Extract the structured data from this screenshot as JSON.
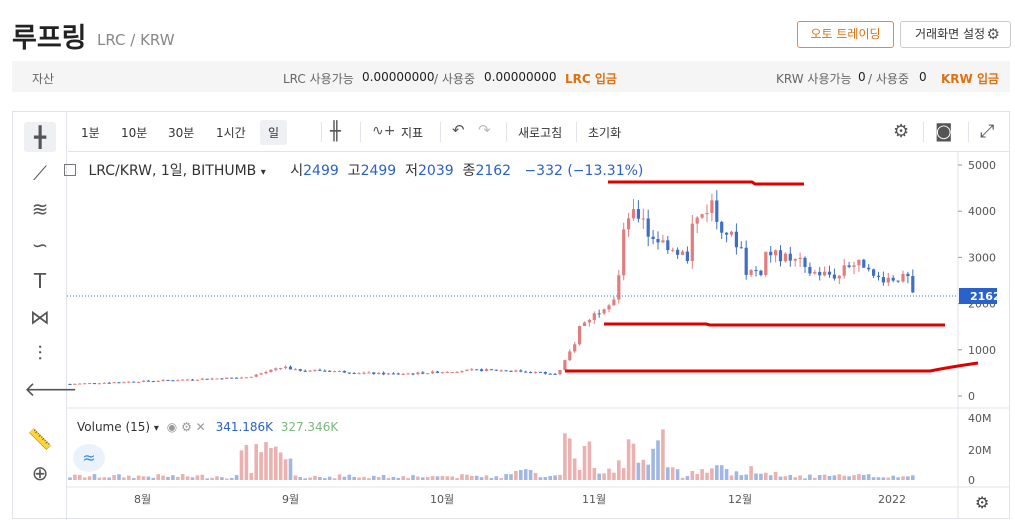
{
  "header": {
    "title": "루프링",
    "subtitle": "LRC / KRW",
    "auto_trading_label": "오토 트레이딩",
    "screen_settings_label": "거래화면 설정"
  },
  "assets": {
    "label": "자산",
    "lrc_available_label": "LRC 사용가능",
    "lrc_available_value": "0.00000000",
    "lrc_in_use_label": "/ 사용중",
    "lrc_in_use_value": "0.00000000",
    "lrc_deposit_label": "LRC 입금",
    "krw_available_label": "KRW 사용가능",
    "krw_available_value": "0",
    "krw_in_use_label": "/ 사용중",
    "krw_in_use_value": "0",
    "krw_deposit_label": "KRW 입금"
  },
  "toolbar": {
    "intervals": [
      "1분",
      "10분",
      "30분",
      "1시간",
      "일"
    ],
    "selected_interval": "일",
    "indicators_label": "지표",
    "refresh_label": "새로고침",
    "reset_label": "초기화"
  },
  "legend": {
    "symbol": "LRC/KRW, 1일, BITHUMB",
    "open_label": "시",
    "open_value": "2499",
    "high_label": "고",
    "high_value": "2499",
    "low_label": "저",
    "low_value": "2039",
    "close_label": "종",
    "close_value": "2162",
    "change": "−332 (−13.31%)"
  },
  "volume_legend": {
    "label": "Volume (15)",
    "value_1": "341.186K",
    "value_2": "327.346K"
  },
  "colors": {
    "up": "#e27d7d",
    "down": "#3f6fc4",
    "accent": "#e07010",
    "annotation": "#e00000"
  },
  "chart_data": {
    "type": "candlestick",
    "last_price": "2162",
    "price_ticks": [
      "5000",
      "4000",
      "3000",
      "2000",
      "1000",
      "0"
    ],
    "volume_ticks": [
      "40M",
      "20M",
      "0"
    ],
    "x_ticks": [
      "8월",
      "9월",
      "10월",
      "11월",
      "12월",
      "2022"
    ],
    "ylim": [
      0,
      5200
    ]
  }
}
